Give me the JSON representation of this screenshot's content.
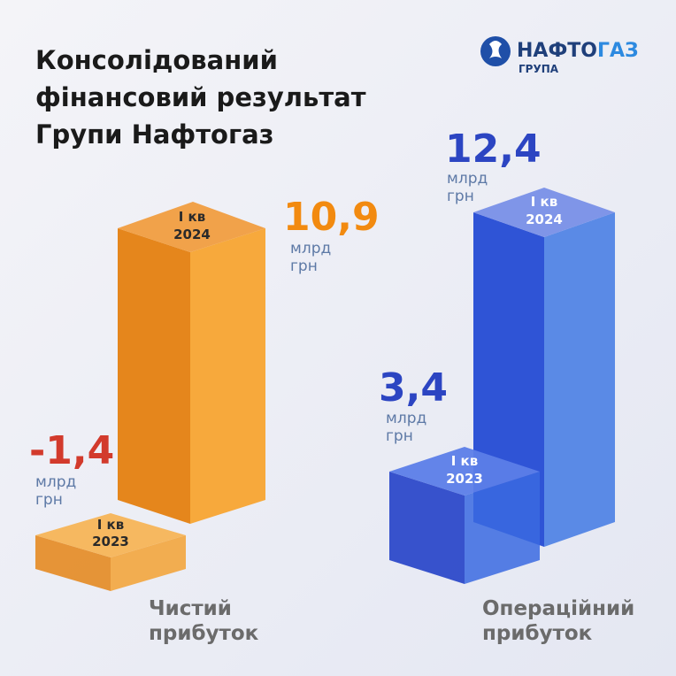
{
  "header": {
    "title_lines": [
      "Консолідований",
      "фінансовий результат",
      "Групи Нафтогаз"
    ],
    "logo": {
      "name_dark": "НАФТО",
      "name_blue": "ГАЗ",
      "sub": "ГРУПА"
    }
  },
  "groups": [
    {
      "label_lines": [
        "Чистий",
        "прибуток"
      ],
      "items": [
        {
          "value": "-1,4",
          "unit_lines": [
            "млрд",
            "грн"
          ],
          "period_lines": [
            "I кв",
            "2023"
          ]
        },
        {
          "value": "10,9",
          "unit_lines": [
            "млрд",
            "грн"
          ],
          "period_lines": [
            "I кв",
            "2024"
          ]
        }
      ]
    },
    {
      "label_lines": [
        "Операційний",
        "прибуток"
      ],
      "items": [
        {
          "value": "3,4",
          "unit_lines": [
            "млрд",
            "грн"
          ],
          "period_lines": [
            "I кв",
            "2023"
          ]
        },
        {
          "value": "12,4",
          "unit_lines": [
            "млрд",
            "грн"
          ],
          "period_lines": [
            "I кв",
            "2024"
          ]
        }
      ]
    }
  ]
}
